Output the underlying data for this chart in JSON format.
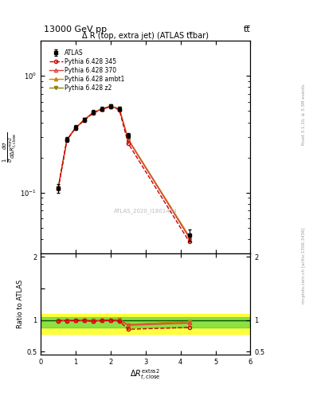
{
  "title_top": "13000 GeV pp",
  "title_right": "tt̅",
  "plot_title": "Δ R (top, extra jet) (ATLAS tt̅bar)",
  "watermark": "ATLAS_2020_I1801434",
  "right_label": "Rivet 3.1.10, ≥ 3.3M events",
  "right_label2": "mcplots.cern.ch [arXiv:1306.3436]",
  "ratio_ylabel": "Ratio to ATLAS",
  "x_data": [
    0.5,
    0.75,
    1.0,
    1.25,
    1.5,
    1.75,
    2.0,
    2.25,
    2.5,
    4.25
  ],
  "atlas_y": [
    0.109,
    0.285,
    0.36,
    0.42,
    0.49,
    0.52,
    0.55,
    0.52,
    0.31,
    0.043
  ],
  "atlas_yerr": [
    0.01,
    0.014,
    0.016,
    0.018,
    0.02,
    0.021,
    0.022,
    0.02,
    0.014,
    0.005
  ],
  "p345_y": [
    0.108,
    0.282,
    0.358,
    0.418,
    0.48,
    0.516,
    0.546,
    0.512,
    0.265,
    0.038
  ],
  "p370_y": [
    0.109,
    0.284,
    0.36,
    0.42,
    0.485,
    0.52,
    0.55,
    0.52,
    0.285,
    0.041
  ],
  "pambt1_y": [
    0.109,
    0.285,
    0.36,
    0.422,
    0.487,
    0.522,
    0.552,
    0.524,
    0.289,
    0.042
  ],
  "pz2_y": [
    0.109,
    0.284,
    0.36,
    0.421,
    0.486,
    0.521,
    0.551,
    0.523,
    0.287,
    0.042
  ],
  "ratio_p345": [
    0.99,
    0.99,
    0.994,
    0.995,
    0.98,
    0.992,
    0.993,
    0.985,
    0.855,
    0.885
  ],
  "ratio_p370": [
    1.0,
    0.997,
    1.0,
    1.0,
    0.99,
    1.0,
    1.0,
    1.0,
    0.919,
    0.953
  ],
  "ratio_pambt1": [
    1.0,
    1.0,
    1.0,
    1.005,
    0.994,
    1.004,
    1.004,
    1.008,
    0.932,
    0.977
  ],
  "ratio_pz2": [
    1.0,
    0.997,
    1.0,
    1.002,
    0.992,
    1.002,
    1.002,
    1.006,
    0.926,
    0.977
  ],
  "color_atlas": "#000000",
  "color_345": "#cc0000",
  "color_370": "#dd4444",
  "color_ambt1": "#cc8800",
  "color_z2": "#888800",
  "ylim_main": [
    0.03,
    2.0
  ],
  "ylim_ratio": [
    0.45,
    2.05
  ],
  "xlim": [
    0.0,
    6.0
  ],
  "band_yellow_color": "#ffff00",
  "band_green_color": "#44cc44",
  "band_yellow_lo": 0.78,
  "band_yellow_hi": 1.1,
  "band_green_lo": 0.88,
  "band_green_hi": 1.05
}
